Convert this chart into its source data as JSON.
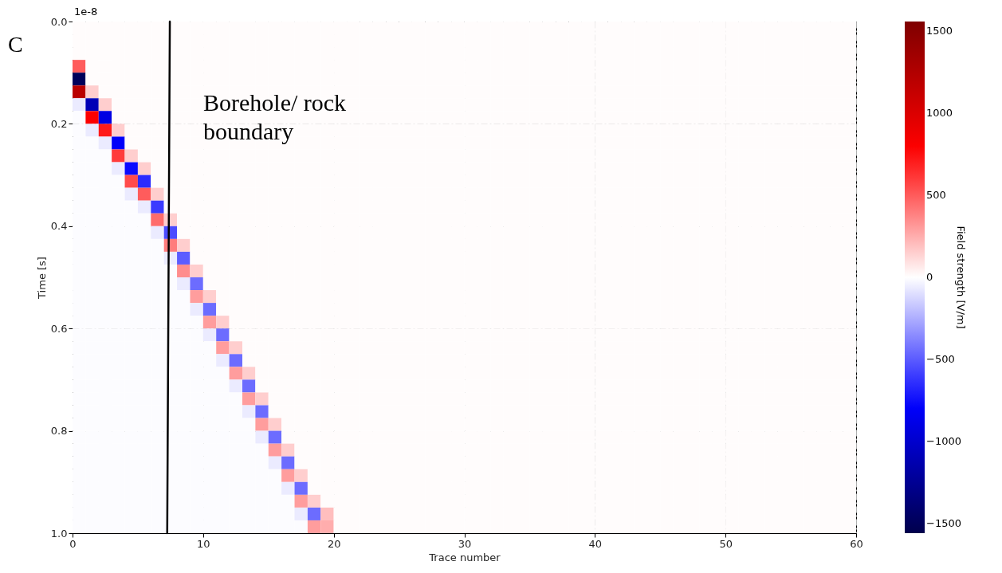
{
  "chart_data": {
    "type": "heatmap",
    "xlabel": "Trace number",
    "ylabel": "Time [s]",
    "clabel": "Field strength [V/m]",
    "xlim": [
      0,
      60
    ],
    "xticks": [
      0,
      10,
      20,
      30,
      40,
      50,
      60
    ],
    "ylim": [
      1.0,
      0.0
    ],
    "yticks": [
      {
        "value": 0.0,
        "label": "0.0"
      },
      {
        "value": 0.2,
        "label": "0.2"
      },
      {
        "value": 0.4,
        "label": "0.4"
      },
      {
        "value": 0.6,
        "label": "0.6"
      },
      {
        "value": 0.8,
        "label": "0.8"
      },
      {
        "value": 1.0,
        "label": "1.0"
      }
    ],
    "clim": [
      -1560,
      1560
    ],
    "cticks": [
      -1500,
      -1000,
      -500,
      0,
      500,
      1000,
      1500
    ],
    "grid": true,
    "annotations": [
      "C",
      "1e-8",
      "Borehole/ rock\nboundary"
    ],
    "series": [
      {
        "type": "line",
        "color": "#000000",
        "x": [
          7.45,
          7.25
        ],
        "values": [
          0.0,
          1.0
        ]
      }
    ],
    "cells": [
      [
        10,
        10,
        10,
        10,
        10,
        10,
        10,
        10,
        10,
        10,
        10,
        10,
        10,
        10,
        10,
        10,
        10,
        10,
        10,
        10,
        10,
        10,
        10,
        10,
        10,
        10,
        10,
        10,
        10,
        10,
        10,
        10,
        10,
        10,
        10,
        10,
        10,
        10,
        10,
        10,
        10,
        10,
        10,
        10,
        10,
        10,
        10,
        10,
        10,
        10,
        10,
        10,
        10,
        10,
        10,
        10,
        10,
        10,
        10,
        10
      ],
      [
        10,
        10,
        10,
        10,
        10,
        10,
        10,
        10,
        10,
        10,
        10,
        10,
        10,
        10,
        10,
        10,
        10,
        10,
        10,
        10,
        10,
        10,
        10,
        10,
        10,
        10,
        10,
        10,
        10,
        10,
        10,
        10,
        10,
        10,
        10,
        10,
        10,
        10,
        10,
        10,
        10,
        10,
        10,
        10,
        10,
        10,
        10,
        10,
        10,
        10,
        10,
        10,
        10,
        10,
        10,
        10,
        10,
        10,
        10,
        10
      ],
      [
        10,
        10,
        10,
        10,
        10,
        10,
        10,
        10,
        10,
        10,
        10,
        10,
        10,
        10,
        10,
        10,
        10,
        10,
        10,
        10,
        10,
        10,
        10,
        10,
        10,
        10,
        10,
        10,
        10,
        10,
        10,
        10,
        10,
        10,
        10,
        10,
        10,
        10,
        10,
        10,
        10,
        10,
        10,
        10,
        10,
        10,
        10,
        10,
        10,
        10,
        10,
        10,
        10,
        10,
        10,
        10,
        10,
        10,
        10,
        10
      ],
      [
        500,
        10,
        10,
        10,
        10,
        10,
        10,
        10,
        10,
        10,
        10,
        10,
        10,
        10,
        10,
        10,
        10,
        10,
        10,
        10,
        10,
        10,
        10,
        10,
        10,
        10,
        10,
        10,
        10,
        10,
        10,
        10,
        10,
        10,
        10,
        10,
        10,
        10,
        10,
        10,
        10,
        10,
        10,
        10,
        10,
        10,
        10,
        10,
        10,
        10,
        10,
        10,
        10,
        10,
        10,
        10,
        10,
        10,
        10,
        10
      ],
      [
        -1500,
        10,
        10,
        10,
        10,
        10,
        10,
        10,
        10,
        10,
        10,
        10,
        10,
        10,
        10,
        10,
        10,
        10,
        10,
        10,
        10,
        10,
        10,
        10,
        10,
        10,
        10,
        10,
        10,
        10,
        10,
        10,
        10,
        10,
        10,
        10,
        10,
        10,
        10,
        10,
        10,
        10,
        10,
        10,
        10,
        10,
        10,
        10,
        10,
        10,
        10,
        10,
        10,
        10,
        10,
        10,
        10,
        10,
        10,
        10
      ],
      [
        1200,
        150,
        10,
        10,
        10,
        10,
        10,
        10,
        10,
        10,
        10,
        10,
        10,
        10,
        10,
        10,
        10,
        10,
        10,
        10,
        10,
        10,
        10,
        10,
        10,
        10,
        10,
        10,
        10,
        10,
        10,
        10,
        10,
        10,
        10,
        10,
        10,
        10,
        10,
        10,
        10,
        10,
        10,
        10,
        10,
        10,
        10,
        10,
        10,
        10,
        10,
        10,
        10,
        10,
        10,
        10,
        10,
        10,
        10,
        10
      ],
      [
        -60,
        -1100,
        150,
        10,
        10,
        10,
        10,
        10,
        10,
        10,
        10,
        10,
        10,
        10,
        10,
        10,
        10,
        10,
        10,
        10,
        10,
        10,
        10,
        10,
        10,
        10,
        10,
        10,
        10,
        10,
        10,
        10,
        10,
        10,
        10,
        10,
        10,
        10,
        10,
        10,
        10,
        10,
        10,
        10,
        10,
        10,
        10,
        10,
        10,
        10,
        10,
        10,
        10,
        10,
        10,
        10,
        10,
        10,
        10,
        10
      ],
      [
        -10,
        800,
        -900,
        10,
        10,
        10,
        10,
        10,
        10,
        10,
        10,
        10,
        10,
        10,
        10,
        10,
        10,
        10,
        10,
        10,
        10,
        10,
        10,
        10,
        10,
        10,
        10,
        10,
        10,
        10,
        10,
        10,
        10,
        10,
        10,
        10,
        10,
        10,
        10,
        10,
        10,
        10,
        10,
        10,
        10,
        10,
        10,
        10,
        10,
        10,
        10,
        10,
        10,
        10,
        10,
        10,
        10,
        10,
        10,
        10
      ],
      [
        -10,
        -60,
        700,
        150,
        10,
        10,
        10,
        10,
        10,
        10,
        10,
        10,
        10,
        10,
        10,
        10,
        10,
        10,
        10,
        10,
        10,
        10,
        10,
        10,
        10,
        10,
        10,
        10,
        10,
        10,
        10,
        10,
        10,
        10,
        10,
        10,
        10,
        10,
        10,
        10,
        10,
        10,
        10,
        10,
        10,
        10,
        10,
        10,
        10,
        10,
        10,
        10,
        10,
        10,
        10,
        10,
        10,
        10,
        10,
        10
      ],
      [
        -10,
        -10,
        -60,
        -800,
        10,
        10,
        10,
        10,
        10,
        10,
        10,
        10,
        10,
        10,
        10,
        10,
        10,
        10,
        10,
        10,
        10,
        10,
        10,
        10,
        10,
        10,
        10,
        10,
        10,
        10,
        10,
        10,
        10,
        10,
        10,
        10,
        10,
        10,
        10,
        10,
        10,
        10,
        10,
        10,
        10,
        10,
        10,
        10,
        10,
        10,
        10,
        10,
        10,
        10,
        10,
        10,
        10,
        10,
        10,
        10
      ],
      [
        -10,
        -10,
        -10,
        600,
        150,
        10,
        10,
        10,
        10,
        10,
        10,
        10,
        10,
        10,
        10,
        10,
        10,
        10,
        10,
        10,
        10,
        10,
        10,
        10,
        10,
        10,
        10,
        10,
        10,
        10,
        10,
        10,
        10,
        10,
        10,
        10,
        10,
        10,
        10,
        10,
        10,
        10,
        10,
        10,
        10,
        10,
        10,
        10,
        10,
        10,
        10,
        10,
        10,
        10,
        10,
        10,
        10,
        10,
        10,
        10
      ],
      [
        -10,
        -10,
        -10,
        -60,
        -750,
        150,
        10,
        10,
        10,
        10,
        10,
        10,
        10,
        10,
        10,
        10,
        10,
        10,
        10,
        10,
        10,
        10,
        10,
        10,
        10,
        10,
        10,
        10,
        10,
        10,
        10,
        10,
        10,
        10,
        10,
        10,
        10,
        10,
        10,
        10,
        10,
        10,
        10,
        10,
        10,
        10,
        10,
        10,
        10,
        10,
        10,
        10,
        10,
        10,
        10,
        10,
        10,
        10,
        10,
        10
      ],
      [
        -10,
        -10,
        -10,
        -10,
        550,
        -650,
        10,
        10,
        10,
        10,
        10,
        10,
        10,
        10,
        10,
        10,
        10,
        10,
        10,
        10,
        10,
        10,
        10,
        10,
        10,
        10,
        10,
        10,
        10,
        10,
        10,
        10,
        10,
        10,
        10,
        10,
        10,
        10,
        10,
        10,
        10,
        10,
        10,
        10,
        10,
        10,
        10,
        10,
        10,
        10,
        10,
        10,
        10,
        10,
        10,
        10,
        10,
        10,
        10,
        10
      ],
      [
        -10,
        -10,
        -10,
        -10,
        -60,
        500,
        150,
        10,
        10,
        10,
        10,
        10,
        10,
        10,
        10,
        10,
        10,
        10,
        10,
        10,
        10,
        10,
        10,
        10,
        10,
        10,
        10,
        10,
        10,
        10,
        10,
        10,
        10,
        10,
        10,
        10,
        10,
        10,
        10,
        10,
        10,
        10,
        10,
        10,
        10,
        10,
        10,
        10,
        10,
        10,
        10,
        10,
        10,
        10,
        10,
        10,
        10,
        10,
        10,
        10
      ],
      [
        -10,
        -10,
        -10,
        -10,
        -10,
        -60,
        -600,
        10,
        10,
        10,
        10,
        10,
        10,
        10,
        10,
        10,
        10,
        10,
        10,
        10,
        10,
        10,
        10,
        10,
        10,
        10,
        10,
        10,
        10,
        10,
        10,
        10,
        10,
        10,
        10,
        10,
        10,
        10,
        10,
        10,
        10,
        10,
        10,
        10,
        10,
        10,
        10,
        10,
        10,
        10,
        10,
        10,
        10,
        10,
        10,
        10,
        10,
        10,
        10,
        10
      ],
      [
        -10,
        -10,
        -10,
        -10,
        -10,
        -10,
        450,
        150,
        10,
        10,
        10,
        10,
        10,
        10,
        10,
        10,
        10,
        10,
        10,
        10,
        10,
        10,
        10,
        10,
        10,
        10,
        10,
        10,
        10,
        10,
        10,
        10,
        10,
        10,
        10,
        10,
        10,
        10,
        10,
        10,
        10,
        10,
        10,
        10,
        10,
        10,
        10,
        10,
        10,
        10,
        10,
        10,
        10,
        10,
        10,
        10,
        10,
        10,
        10,
        10
      ],
      [
        -10,
        -10,
        -10,
        -10,
        -10,
        -10,
        -60,
        -550,
        10,
        10,
        10,
        10,
        10,
        10,
        10,
        10,
        10,
        10,
        10,
        10,
        10,
        10,
        10,
        10,
        10,
        10,
        10,
        10,
        10,
        10,
        10,
        10,
        10,
        10,
        10,
        10,
        10,
        10,
        10,
        10,
        10,
        10,
        10,
        10,
        10,
        10,
        10,
        10,
        10,
        10,
        10,
        10,
        10,
        10,
        10,
        10,
        10,
        10,
        10,
        10
      ],
      [
        -10,
        -10,
        -10,
        -10,
        -10,
        -10,
        -10,
        400,
        150,
        10,
        10,
        10,
        10,
        10,
        10,
        10,
        10,
        10,
        10,
        10,
        10,
        10,
        10,
        10,
        10,
        10,
        10,
        10,
        10,
        10,
        10,
        10,
        10,
        10,
        10,
        10,
        10,
        10,
        10,
        10,
        10,
        10,
        10,
        10,
        10,
        10,
        10,
        10,
        10,
        10,
        10,
        10,
        10,
        10,
        10,
        10,
        10,
        10,
        10,
        10
      ],
      [
        -10,
        -10,
        -10,
        -10,
        -10,
        -10,
        -10,
        -60,
        -500,
        10,
        10,
        10,
        10,
        10,
        10,
        10,
        10,
        10,
        10,
        10,
        10,
        10,
        10,
        10,
        10,
        10,
        10,
        10,
        10,
        10,
        10,
        10,
        10,
        10,
        10,
        10,
        10,
        10,
        10,
        10,
        10,
        10,
        10,
        10,
        10,
        10,
        10,
        10,
        10,
        10,
        10,
        10,
        10,
        10,
        10,
        10,
        10,
        10,
        10,
        10
      ],
      [
        -10,
        -10,
        -10,
        -10,
        -10,
        -10,
        -10,
        -10,
        350,
        150,
        10,
        10,
        10,
        10,
        10,
        10,
        10,
        10,
        10,
        10,
        10,
        10,
        10,
        10,
        10,
        10,
        10,
        10,
        10,
        10,
        10,
        10,
        10,
        10,
        10,
        10,
        10,
        10,
        10,
        10,
        10,
        10,
        10,
        10,
        10,
        10,
        10,
        10,
        10,
        10,
        10,
        10,
        10,
        10,
        10,
        10,
        10,
        10,
        10,
        10
      ],
      [
        -10,
        -10,
        -10,
        -10,
        -10,
        -10,
        -10,
        -10,
        -60,
        -450,
        10,
        10,
        10,
        10,
        10,
        10,
        10,
        10,
        10,
        10,
        10,
        10,
        10,
        10,
        10,
        10,
        10,
        10,
        10,
        10,
        10,
        10,
        10,
        10,
        10,
        10,
        10,
        10,
        10,
        10,
        10,
        10,
        10,
        10,
        10,
        10,
        10,
        10,
        10,
        10,
        10,
        10,
        10,
        10,
        10,
        10,
        10,
        10,
        10,
        10
      ],
      [
        -10,
        -10,
        -10,
        -10,
        -10,
        -10,
        -10,
        -10,
        -10,
        300,
        150,
        10,
        10,
        10,
        10,
        10,
        10,
        10,
        10,
        10,
        10,
        10,
        10,
        10,
        10,
        10,
        10,
        10,
        10,
        10,
        10,
        10,
        10,
        10,
        10,
        10,
        10,
        10,
        10,
        10,
        10,
        10,
        10,
        10,
        10,
        10,
        10,
        10,
        10,
        10,
        10,
        10,
        10,
        10,
        10,
        10,
        10,
        10,
        10,
        10
      ],
      [
        -10,
        -10,
        -10,
        -10,
        -10,
        -10,
        -10,
        -10,
        -10,
        -60,
        -450,
        10,
        10,
        10,
        10,
        10,
        10,
        10,
        10,
        10,
        10,
        10,
        10,
        10,
        10,
        10,
        10,
        10,
        10,
        10,
        10,
        10,
        10,
        10,
        10,
        10,
        10,
        10,
        10,
        10,
        10,
        10,
        10,
        10,
        10,
        10,
        10,
        10,
        10,
        10,
        10,
        10,
        10,
        10,
        10,
        10,
        10,
        10,
        10,
        10
      ],
      [
        -10,
        -10,
        -10,
        -10,
        -10,
        -10,
        -10,
        -10,
        -10,
        -10,
        300,
        150,
        10,
        10,
        10,
        10,
        10,
        10,
        10,
        10,
        10,
        10,
        10,
        10,
        10,
        10,
        10,
        10,
        10,
        10,
        10,
        10,
        10,
        10,
        10,
        10,
        10,
        10,
        10,
        10,
        10,
        10,
        10,
        10,
        10,
        10,
        10,
        10,
        10,
        10,
        10,
        10,
        10,
        10,
        10,
        10,
        10,
        10,
        10,
        10
      ],
      [
        -10,
        -10,
        -10,
        -10,
        -10,
        -10,
        -10,
        -10,
        -10,
        -10,
        -60,
        -450,
        10,
        10,
        10,
        10,
        10,
        10,
        10,
        10,
        10,
        10,
        10,
        10,
        10,
        10,
        10,
        10,
        10,
        10,
        10,
        10,
        10,
        10,
        10,
        10,
        10,
        10,
        10,
        10,
        10,
        10,
        10,
        10,
        10,
        10,
        10,
        10,
        10,
        10,
        10,
        10,
        10,
        10,
        10,
        10,
        10,
        10,
        10,
        10
      ],
      [
        -10,
        -10,
        -10,
        -10,
        -10,
        -10,
        -10,
        -10,
        -10,
        -10,
        -10,
        300,
        150,
        10,
        10,
        10,
        10,
        10,
        10,
        10,
        10,
        10,
        10,
        10,
        10,
        10,
        10,
        10,
        10,
        10,
        10,
        10,
        10,
        10,
        10,
        10,
        10,
        10,
        10,
        10,
        10,
        10,
        10,
        10,
        10,
        10,
        10,
        10,
        10,
        10,
        10,
        10,
        10,
        10,
        10,
        10,
        10,
        10,
        10,
        10
      ],
      [
        -10,
        -10,
        -10,
        -10,
        -10,
        -10,
        -10,
        -10,
        -10,
        -10,
        -10,
        -60,
        -450,
        10,
        10,
        10,
        10,
        10,
        10,
        10,
        10,
        10,
        10,
        10,
        10,
        10,
        10,
        10,
        10,
        10,
        10,
        10,
        10,
        10,
        10,
        10,
        10,
        10,
        10,
        10,
        10,
        10,
        10,
        10,
        10,
        10,
        10,
        10,
        10,
        10,
        10,
        10,
        10,
        10,
        10,
        10,
        10,
        10,
        10,
        10
      ],
      [
        -10,
        -10,
        -10,
        -10,
        -10,
        -10,
        -10,
        -10,
        -10,
        -10,
        -10,
        -10,
        300,
        150,
        10,
        10,
        10,
        10,
        10,
        10,
        10,
        10,
        10,
        10,
        10,
        10,
        10,
        10,
        10,
        10,
        10,
        10,
        10,
        10,
        10,
        10,
        10,
        10,
        10,
        10,
        10,
        10,
        10,
        10,
        10,
        10,
        10,
        10,
        10,
        10,
        10,
        10,
        10,
        10,
        10,
        10,
        10,
        10,
        10,
        10
      ],
      [
        -10,
        -10,
        -10,
        -10,
        -10,
        -10,
        -10,
        -10,
        -10,
        -10,
        -10,
        -10,
        -60,
        -450,
        10,
        10,
        10,
        10,
        10,
        10,
        10,
        10,
        10,
        10,
        10,
        10,
        10,
        10,
        10,
        10,
        10,
        10,
        10,
        10,
        10,
        10,
        10,
        10,
        10,
        10,
        10,
        10,
        10,
        10,
        10,
        10,
        10,
        10,
        10,
        10,
        10,
        10,
        10,
        10,
        10,
        10,
        10,
        10,
        10,
        10
      ],
      [
        -10,
        -10,
        -10,
        -10,
        -10,
        -10,
        -10,
        -10,
        -10,
        -10,
        -10,
        -10,
        -10,
        300,
        150,
        10,
        10,
        10,
        10,
        10,
        10,
        10,
        10,
        10,
        10,
        10,
        10,
        10,
        10,
        10,
        10,
        10,
        10,
        10,
        10,
        10,
        10,
        10,
        10,
        10,
        10,
        10,
        10,
        10,
        10,
        10,
        10,
        10,
        10,
        10,
        10,
        10,
        10,
        10,
        10,
        10,
        10,
        10,
        10,
        10
      ],
      [
        -10,
        -10,
        -10,
        -10,
        -10,
        -10,
        -10,
        -10,
        -10,
        -10,
        -10,
        -10,
        -10,
        -60,
        -450,
        10,
        10,
        10,
        10,
        10,
        10,
        10,
        10,
        10,
        10,
        10,
        10,
        10,
        10,
        10,
        10,
        10,
        10,
        10,
        10,
        10,
        10,
        10,
        10,
        10,
        10,
        10,
        10,
        10,
        10,
        10,
        10,
        10,
        10,
        10,
        10,
        10,
        10,
        10,
        10,
        10,
        10,
        10,
        10,
        10
      ],
      [
        -10,
        -10,
        -10,
        -10,
        -10,
        -10,
        -10,
        -10,
        -10,
        -10,
        -10,
        -10,
        -10,
        -10,
        300,
        150,
        10,
        10,
        10,
        10,
        10,
        10,
        10,
        10,
        10,
        10,
        10,
        10,
        10,
        10,
        10,
        10,
        10,
        10,
        10,
        10,
        10,
        10,
        10,
        10,
        10,
        10,
        10,
        10,
        10,
        10,
        10,
        10,
        10,
        10,
        10,
        10,
        10,
        10,
        10,
        10,
        10,
        10,
        10,
        10
      ],
      [
        -10,
        -10,
        -10,
        -10,
        -10,
        -10,
        -10,
        -10,
        -10,
        -10,
        -10,
        -10,
        -10,
        -10,
        -60,
        -450,
        10,
        10,
        10,
        10,
        10,
        10,
        10,
        10,
        10,
        10,
        10,
        10,
        10,
        10,
        10,
        10,
        10,
        10,
        10,
        10,
        10,
        10,
        10,
        10,
        10,
        10,
        10,
        10,
        10,
        10,
        10,
        10,
        10,
        10,
        10,
        10,
        10,
        10,
        10,
        10,
        10,
        10,
        10,
        10
      ],
      [
        -10,
        -10,
        -10,
        -10,
        -10,
        -10,
        -10,
        -10,
        -10,
        -10,
        -10,
        -10,
        -10,
        -10,
        -10,
        300,
        150,
        10,
        10,
        10,
        10,
        10,
        10,
        10,
        10,
        10,
        10,
        10,
        10,
        10,
        10,
        10,
        10,
        10,
        10,
        10,
        10,
        10,
        10,
        10,
        10,
        10,
        10,
        10,
        10,
        10,
        10,
        10,
        10,
        10,
        10,
        10,
        10,
        10,
        10,
        10,
        10,
        10,
        10,
        10
      ],
      [
        -10,
        -10,
        -10,
        -10,
        -10,
        -10,
        -10,
        -10,
        -10,
        -10,
        -10,
        -10,
        -10,
        -10,
        -10,
        -60,
        -450,
        10,
        10,
        10,
        10,
        10,
        10,
        10,
        10,
        10,
        10,
        10,
        10,
        10,
        10,
        10,
        10,
        10,
        10,
        10,
        10,
        10,
        10,
        10,
        10,
        10,
        10,
        10,
        10,
        10,
        10,
        10,
        10,
        10,
        10,
        10,
        10,
        10,
        10,
        10,
        10,
        10,
        10,
        10
      ],
      [
        -10,
        -10,
        -10,
        -10,
        -10,
        -10,
        -10,
        -10,
        -10,
        -10,
        -10,
        -10,
        -10,
        -10,
        -10,
        -10,
        300,
        150,
        10,
        10,
        10,
        10,
        10,
        10,
        10,
        10,
        10,
        10,
        10,
        10,
        10,
        10,
        10,
        10,
        10,
        10,
        10,
        10,
        10,
        10,
        10,
        10,
        10,
        10,
        10,
        10,
        10,
        10,
        10,
        10,
        10,
        10,
        10,
        10,
        10,
        10,
        10,
        10,
        10,
        10
      ],
      [
        -10,
        -10,
        -10,
        -10,
        -10,
        -10,
        -10,
        -10,
        -10,
        -10,
        -10,
        -10,
        -10,
        -10,
        -10,
        -10,
        -60,
        -450,
        10,
        10,
        10,
        10,
        10,
        10,
        10,
        10,
        10,
        10,
        10,
        10,
        10,
        10,
        10,
        10,
        10,
        10,
        10,
        10,
        10,
        10,
        10,
        10,
        10,
        10,
        10,
        10,
        10,
        10,
        10,
        10,
        10,
        10,
        10,
        10,
        10,
        10,
        10,
        10,
        10,
        10
      ],
      [
        -10,
        -10,
        -10,
        -10,
        -10,
        -10,
        -10,
        -10,
        -10,
        -10,
        -10,
        -10,
        -10,
        -10,
        -10,
        -10,
        -10,
        300,
        150,
        10,
        10,
        10,
        10,
        10,
        10,
        10,
        10,
        10,
        10,
        10,
        10,
        10,
        10,
        10,
        10,
        10,
        10,
        10,
        10,
        10,
        10,
        10,
        10,
        10,
        10,
        10,
        10,
        10,
        10,
        10,
        10,
        10,
        10,
        10,
        10,
        10,
        10,
        10,
        10,
        10
      ],
      [
        -10,
        -10,
        -10,
        -10,
        -10,
        -10,
        -10,
        -10,
        -10,
        -10,
        -10,
        -10,
        -10,
        -10,
        -10,
        -10,
        -10,
        -60,
        -450,
        200,
        10,
        10,
        10,
        10,
        10,
        10,
        10,
        10,
        10,
        10,
        10,
        10,
        10,
        10,
        10,
        10,
        10,
        10,
        10,
        10,
        10,
        10,
        10,
        10,
        10,
        10,
        10,
        10,
        10,
        10,
        10,
        10,
        10,
        10,
        10,
        10,
        10,
        10,
        10,
        10
      ],
      [
        -10,
        -10,
        -10,
        -10,
        -10,
        -10,
        -10,
        -10,
        -10,
        -10,
        -10,
        -10,
        -10,
        -10,
        -10,
        -10,
        -10,
        -10,
        300,
        250,
        10,
        10,
        10,
        10,
        10,
        10,
        10,
        10,
        10,
        10,
        10,
        10,
        10,
        10,
        10,
        10,
        10,
        10,
        10,
        10,
        10,
        10,
        10,
        10,
        10,
        10,
        10,
        10,
        10,
        10,
        10,
        10,
        10,
        10,
        10,
        10,
        10,
        10,
        10,
        10
      ]
    ]
  }
}
